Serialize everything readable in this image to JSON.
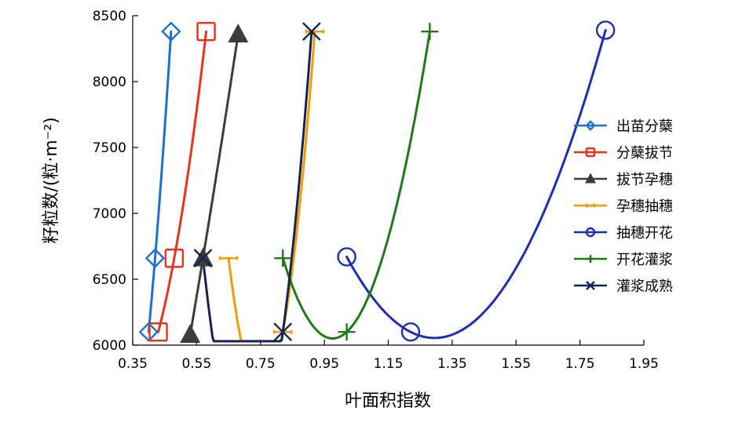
{
  "chart_data": {
    "type": "line",
    "title": "",
    "xlabel": "叶面积指数",
    "ylabel": "籽粒数/(粒·m⁻²)",
    "xlim": [
      0.35,
      1.95
    ],
    "ylim": [
      6000,
      8500
    ],
    "xticks": [
      "0.35",
      "0.55",
      "0.75",
      "0.95",
      "1.15",
      "1.35",
      "1.55",
      "1.75",
      "1.95"
    ],
    "yticks": [
      "6000",
      "6500",
      "7000",
      "7500",
      "8000",
      "8500"
    ],
    "grid": false,
    "legend_position": "right",
    "series": [
      {
        "name": "出苗分蘖",
        "color": "#1f6fd1",
        "marker": "diamond",
        "points": [
          [
            0.4,
            6100
          ],
          [
            0.42,
            6660
          ],
          [
            0.47,
            8380
          ]
        ]
      },
      {
        "name": "分蘖拔节",
        "color": "#e8321e",
        "marker": "square",
        "points": [
          [
            0.43,
            6100
          ],
          [
            0.48,
            6660
          ],
          [
            0.58,
            8380
          ]
        ]
      },
      {
        "name": "拔节孕穗",
        "color": "#3c3c3c",
        "marker": "triangle",
        "points": [
          [
            0.53,
            6080
          ],
          [
            0.57,
            6660
          ],
          [
            0.68,
            8360
          ]
        ]
      },
      {
        "name": "孕穗抽穗",
        "color": "#f59a0a",
        "marker": "dash",
        "points": [
          [
            0.65,
            6660
          ],
          [
            0.82,
            6100
          ],
          [
            0.92,
            8380
          ]
        ]
      },
      {
        "name": "抽穗开花",
        "color": "#1d2db5",
        "marker": "circle",
        "points": [
          [
            1.02,
            6670
          ],
          [
            1.22,
            6100
          ],
          [
            1.83,
            8390
          ]
        ]
      },
      {
        "name": "开花灌浆",
        "color": "#1f7a16",
        "marker": "plus",
        "points": [
          [
            0.82,
            6660
          ],
          [
            1.02,
            6100
          ],
          [
            1.28,
            8380
          ]
        ]
      },
      {
        "name": "灌浆成熟",
        "color": "#132452",
        "marker": "x",
        "points": [
          [
            0.57,
            6660
          ],
          [
            0.82,
            6100
          ],
          [
            0.91,
            8380
          ]
        ]
      }
    ]
  }
}
